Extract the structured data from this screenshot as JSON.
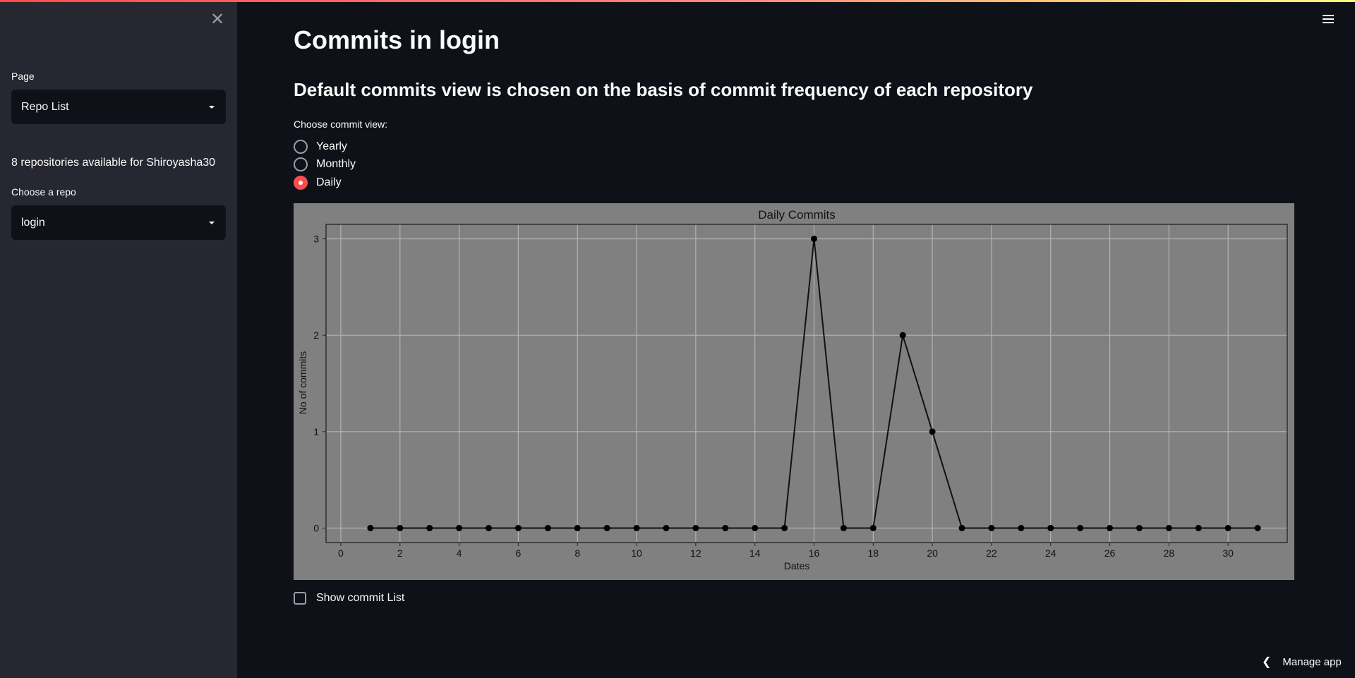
{
  "sidebar": {
    "page_label": "Page",
    "page_select_value": "Repo List",
    "repos_text": "8 repositories available for Shiroyasha30",
    "repo_label": "Choose a repo",
    "repo_select_value": "login"
  },
  "main": {
    "title": "Commits in login",
    "subtitle": "Default commits view is chosen on the basis of commit frequency of each repository",
    "radio_label": "Choose commit view:",
    "radio_options": [
      {
        "label": "Yearly",
        "selected": false
      },
      {
        "label": "Monthly",
        "selected": false
      },
      {
        "label": "Daily",
        "selected": true
      }
    ],
    "checkbox_label": "Show commit List"
  },
  "footer": {
    "manage_app_label": "Manage app"
  },
  "icons": {
    "close": "close-icon",
    "menu": "hamburger-menu-icon",
    "dropdown": "chevron-down-icon",
    "manage": "chevron-left-icon"
  },
  "colors": {
    "accent": "#ff4b4b",
    "background": "#0e1117",
    "sidebar": "#262730",
    "chart_background": "#808080"
  },
  "chart_data": {
    "type": "line",
    "title": "Daily Commits",
    "xlabel": "Dates",
    "ylabel": "No of commits",
    "x": [
      1,
      2,
      3,
      4,
      5,
      6,
      7,
      8,
      9,
      10,
      11,
      12,
      13,
      14,
      15,
      16,
      17,
      18,
      19,
      20,
      21,
      22,
      23,
      24,
      25,
      26,
      27,
      28,
      29,
      30,
      31
    ],
    "y": [
      0,
      0,
      0,
      0,
      0,
      0,
      0,
      0,
      0,
      0,
      0,
      0,
      0,
      0,
      0,
      3,
      0,
      0,
      2,
      1,
      0,
      0,
      0,
      0,
      0,
      0,
      0,
      0,
      0,
      0,
      0
    ],
    "xlim": [
      -0.5,
      32
    ],
    "ylim": [
      -0.15,
      3.15
    ],
    "xticks": [
      0,
      2,
      4,
      6,
      8,
      10,
      12,
      14,
      16,
      18,
      20,
      22,
      24,
      26,
      28,
      30
    ],
    "yticks": [
      0,
      1,
      2,
      3
    ],
    "grid": true,
    "line_color": "#111111",
    "marker": "circle"
  }
}
